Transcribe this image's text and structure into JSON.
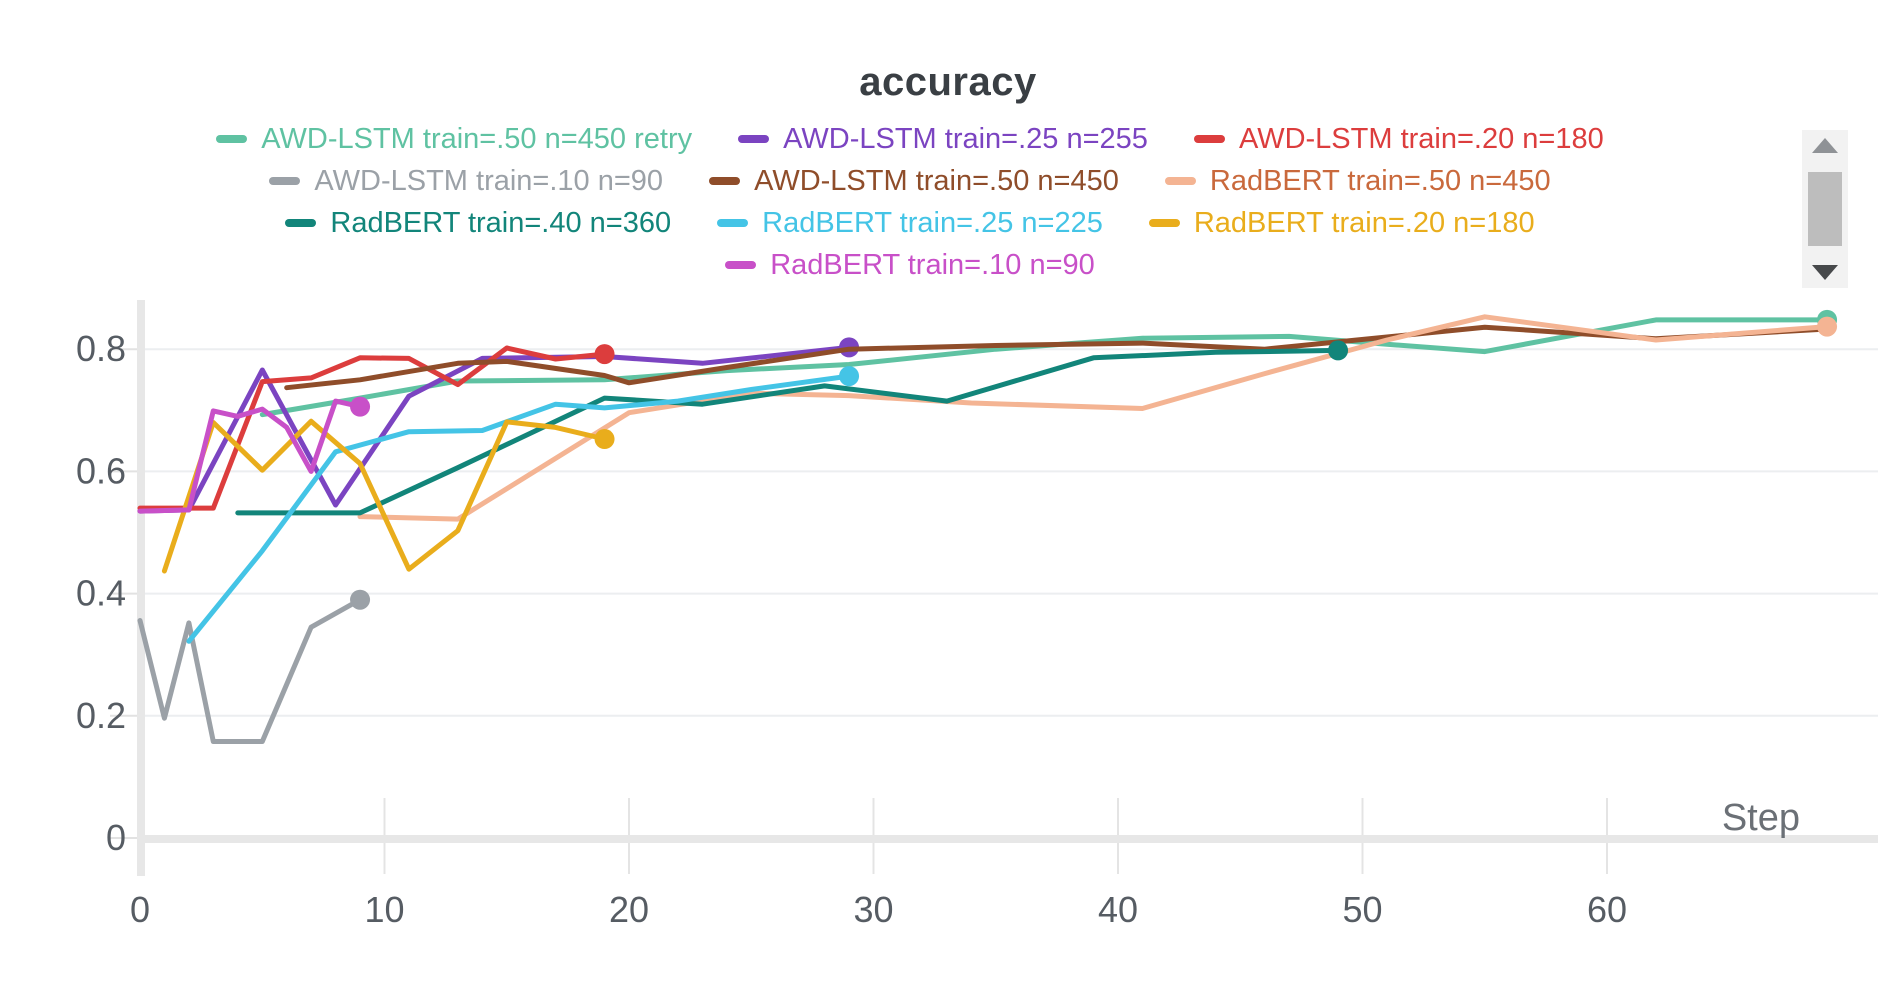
{
  "chart_data": {
    "type": "line",
    "title": "accuracy",
    "x_axis": {
      "label": "Step",
      "ticks": [
        0,
        10,
        20,
        30,
        40,
        50,
        60
      ],
      "range": [
        0,
        71
      ]
    },
    "y_axis": {
      "ticks": [
        0,
        0.2,
        0.4,
        0.6,
        0.8
      ],
      "range": [
        0,
        0.87
      ],
      "grid": true
    },
    "legend_position": "top-center",
    "legend_rows": [
      [
        0,
        1,
        2
      ],
      [
        3,
        4,
        5
      ],
      [
        6,
        7,
        8
      ],
      [
        9
      ]
    ],
    "series": [
      {
        "label": "AWD-LSTM train=.50 n=450 retry",
        "color": "#5fc2a2",
        "end_dot": true,
        "points": [
          [
            5,
            0.693
          ],
          [
            9,
            0.72
          ],
          [
            13,
            0.748
          ],
          [
            19,
            0.75
          ],
          [
            24,
            0.765
          ],
          [
            29,
            0.775
          ],
          [
            35,
            0.8
          ],
          [
            41,
            0.818
          ],
          [
            47,
            0.821
          ],
          [
            51,
            0.808
          ],
          [
            55,
            0.796
          ],
          [
            62,
            0.848
          ],
          [
            69,
            0.848
          ]
        ]
      },
      {
        "label": "AWD-LSTM train=.25 n=255",
        "color": "#7b44c1",
        "end_dot": true,
        "points": [
          [
            0,
            0.535
          ],
          [
            2,
            0.537
          ],
          [
            5,
            0.766
          ],
          [
            8,
            0.545
          ],
          [
            11,
            0.723
          ],
          [
            14,
            0.785
          ],
          [
            19,
            0.788
          ],
          [
            23,
            0.777
          ],
          [
            29,
            0.803
          ]
        ]
      },
      {
        "label": "AWD-LSTM train=.20 n=180",
        "color": "#dc3d3d",
        "end_dot": true,
        "points": [
          [
            0,
            0.54
          ],
          [
            3,
            0.54
          ],
          [
            5,
            0.747
          ],
          [
            7,
            0.753
          ],
          [
            9,
            0.786
          ],
          [
            11,
            0.785
          ],
          [
            13,
            0.742
          ],
          [
            15,
            0.802
          ],
          [
            17,
            0.784
          ],
          [
            19,
            0.792
          ]
        ]
      },
      {
        "label": "AWD-LSTM train=.10 n=90",
        "color": "#9ba1a7",
        "end_dot": true,
        "points": [
          [
            0,
            0.356
          ],
          [
            1,
            0.196
          ],
          [
            2,
            0.352
          ],
          [
            3,
            0.158
          ],
          [
            5,
            0.158
          ],
          [
            7,
            0.345
          ],
          [
            9,
            0.39
          ]
        ]
      },
      {
        "label": "AWD-LSTM train=.50 n=450",
        "color": "#8f4d2a",
        "end_dot": false,
        "points": [
          [
            6,
            0.737
          ],
          [
            9,
            0.75
          ],
          [
            13,
            0.777
          ],
          [
            15,
            0.78
          ],
          [
            19,
            0.757
          ],
          [
            20,
            0.745
          ],
          [
            24,
            0.77
          ],
          [
            29,
            0.8
          ],
          [
            35,
            0.806
          ],
          [
            41,
            0.81
          ],
          [
            46,
            0.8
          ],
          [
            51,
            0.82
          ],
          [
            55,
            0.836
          ],
          [
            62,
            0.817
          ],
          [
            69,
            0.833
          ]
        ]
      },
      {
        "label": "RadBERT train=.50 n=450",
        "color": "#f4b493",
        "text_color": "#c9693c",
        "end_dot": true,
        "points": [
          [
            9,
            0.526
          ],
          [
            13,
            0.522
          ],
          [
            20,
            0.696
          ],
          [
            25,
            0.728
          ],
          [
            29,
            0.724
          ],
          [
            34,
            0.712
          ],
          [
            41,
            0.703
          ],
          [
            46,
            0.76
          ],
          [
            51,
            0.815
          ],
          [
            55,
            0.853
          ],
          [
            62,
            0.815
          ],
          [
            69,
            0.837
          ]
        ]
      },
      {
        "label": "RadBERT train=.40 n=360",
        "color": "#12857a",
        "end_dot": true,
        "points": [
          [
            4,
            0.532
          ],
          [
            9,
            0.532
          ],
          [
            13,
            0.606
          ],
          [
            19,
            0.72
          ],
          [
            23,
            0.71
          ],
          [
            28,
            0.74
          ],
          [
            33,
            0.715
          ],
          [
            39,
            0.786
          ],
          [
            44,
            0.795
          ],
          [
            49,
            0.798
          ]
        ]
      },
      {
        "label": "RadBERT train=.25 n=225",
        "color": "#44c4e6",
        "end_dot": true,
        "points": [
          [
            2,
            0.322
          ],
          [
            5,
            0.47
          ],
          [
            8,
            0.632
          ],
          [
            11,
            0.665
          ],
          [
            14,
            0.667
          ],
          [
            17,
            0.71
          ],
          [
            19,
            0.704
          ],
          [
            22,
            0.715
          ],
          [
            25,
            0.734
          ],
          [
            29,
            0.756
          ]
        ]
      },
      {
        "label": "RadBERT train=.20 n=180",
        "color": "#e9ad1c",
        "end_dot": true,
        "points": [
          [
            1,
            0.437
          ],
          [
            3,
            0.68
          ],
          [
            5,
            0.602
          ],
          [
            7,
            0.682
          ],
          [
            9,
            0.613
          ],
          [
            11,
            0.44
          ],
          [
            13,
            0.503
          ],
          [
            15,
            0.681
          ],
          [
            17,
            0.672
          ],
          [
            19,
            0.653
          ]
        ]
      },
      {
        "label": "RadBERT train=.10 n=90",
        "color": "#c850c8",
        "end_dot": true,
        "points": [
          [
            0,
            0.535
          ],
          [
            2,
            0.537
          ],
          [
            3,
            0.699
          ],
          [
            4,
            0.69
          ],
          [
            5,
            0.702
          ],
          [
            6,
            0.672
          ],
          [
            7,
            0.6
          ],
          [
            8,
            0.715
          ],
          [
            9,
            0.706
          ]
        ]
      }
    ],
    "draw_order": [
      0,
      1,
      2,
      3,
      4,
      5,
      6,
      7,
      8,
      9
    ],
    "colors": {
      "title_text": "#3a3f44",
      "axis_line": "#e7e7e7",
      "gridline": "#eceef0",
      "tick_text": "#565c63",
      "step_label_text": "#6b7076",
      "scroll_track": "#f2f2f2",
      "scroll_thumb": "#bdbdbd",
      "scroll_arrow_up": "#8f9296",
      "scroll_arrow_down": "#47494b"
    }
  },
  "scrollbar": {
    "up_icon": "triangle-up",
    "down_icon": "triangle-down"
  }
}
